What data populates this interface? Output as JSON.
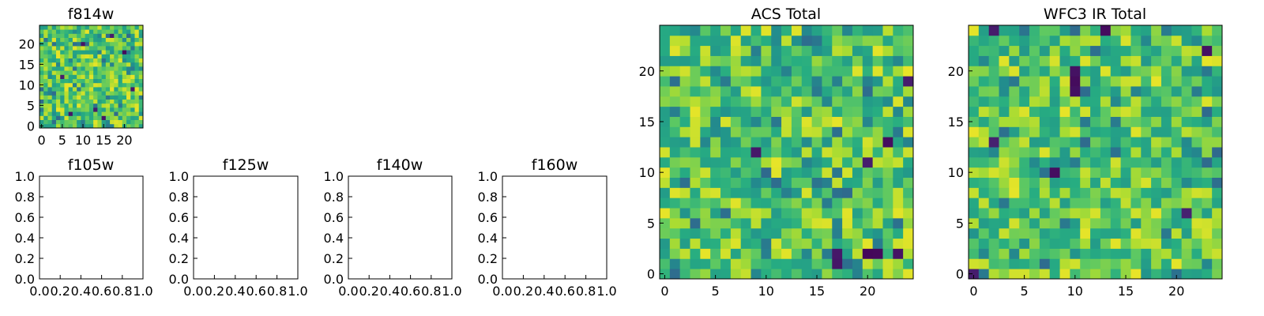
{
  "chart_data": [
    {
      "type": "heatmap",
      "title": "f814w",
      "grid_size": 25,
      "xticks": [
        "0",
        "5",
        "10",
        "15",
        "20"
      ],
      "yticks": [
        "0",
        "5",
        "10",
        "15",
        "20"
      ],
      "colormap": "viridis",
      "grid": false,
      "seed": 11,
      "dark_cells": [
        [
          7,
          3
        ],
        [
          10,
          20
        ],
        [
          13,
          4
        ],
        [
          17,
          22
        ],
        [
          20,
          18
        ],
        [
          22,
          9
        ],
        [
          5,
          12
        ],
        [
          15,
          2
        ]
      ]
    },
    {
      "type": "heatmap",
      "title": "f105w",
      "empty": true,
      "xticks": [
        "0.0",
        "0.2",
        "0.4",
        "0.6",
        "0.8",
        "1.0"
      ],
      "yticks": [
        "0.0",
        "0.2",
        "0.4",
        "0.6",
        "0.8",
        "1.0"
      ]
    },
    {
      "type": "heatmap",
      "title": "f125w",
      "empty": true,
      "xticks": [
        "0.0",
        "0.2",
        "0.4",
        "0.6",
        "0.8",
        "1.0"
      ],
      "yticks": [
        "0.0",
        "0.2",
        "0.4",
        "0.6",
        "0.8",
        "1.0"
      ]
    },
    {
      "type": "heatmap",
      "title": "f140w",
      "empty": true,
      "xticks": [
        "0.0",
        "0.2",
        "0.4",
        "0.6",
        "0.8",
        "1.0"
      ],
      "yticks": [
        "0.0",
        "0.2",
        "0.4",
        "0.6",
        "0.8",
        "1.0"
      ]
    },
    {
      "type": "heatmap",
      "title": "f160w",
      "empty": true,
      "xticks": [
        "0.0",
        "0.2",
        "0.4",
        "0.6",
        "0.8",
        "1.0"
      ],
      "yticks": [
        "0.0",
        "0.2",
        "0.4",
        "0.6",
        "0.8",
        "1.0"
      ]
    },
    {
      "type": "heatmap",
      "title": "ACS Total",
      "grid_size": 25,
      "xticks": [
        "0",
        "5",
        "10",
        "15",
        "20"
      ],
      "yticks": [
        "0",
        "5",
        "10",
        "15",
        "20"
      ],
      "colormap": "viridis",
      "grid": false,
      "seed": 37,
      "dark_cells": [
        [
          9,
          12
        ],
        [
          17,
          1
        ],
        [
          17,
          2
        ],
        [
          20,
          2
        ],
        [
          21,
          2
        ],
        [
          23,
          2
        ],
        [
          22,
          13
        ],
        [
          24,
          19
        ],
        [
          20,
          11
        ]
      ]
    },
    {
      "type": "heatmap",
      "title": "WFC3 IR Total",
      "grid_size": 25,
      "xticks": [
        "0",
        "5",
        "10",
        "15",
        "20"
      ],
      "yticks": [
        "0",
        "5",
        "10",
        "15",
        "20"
      ],
      "colormap": "viridis",
      "grid": false,
      "seed": 73,
      "dark_cells": [
        [
          2,
          24
        ],
        [
          10,
          18
        ],
        [
          10,
          19
        ],
        [
          10,
          20
        ],
        [
          23,
          22
        ],
        [
          2,
          13
        ],
        [
          21,
          6
        ],
        [
          0,
          0
        ],
        [
          8,
          10
        ],
        [
          13,
          24
        ]
      ]
    }
  ]
}
